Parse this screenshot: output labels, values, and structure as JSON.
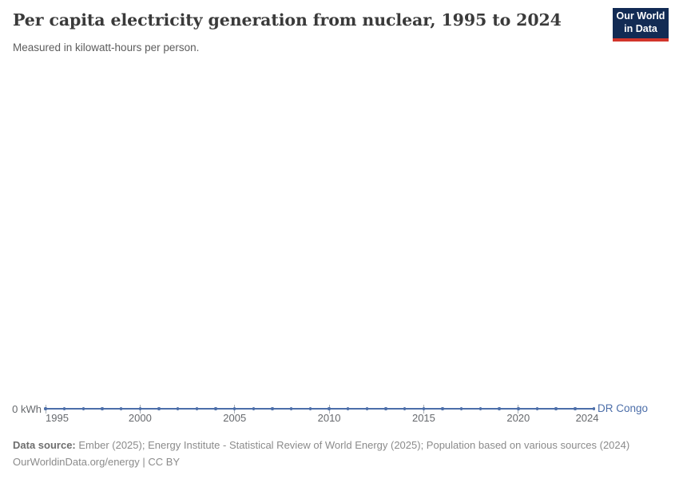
{
  "header": {
    "title": "Per capita electricity generation from nuclear, 1995 to 2024",
    "subtitle": "Measured in kilowatt-hours per person.",
    "logo": {
      "line1": "Our World",
      "line2": "in Data"
    }
  },
  "chart_data": {
    "type": "line",
    "title": "Per capita electricity generation from nuclear, 1995 to 2024",
    "subtitle": "Measured in kilowatt-hours per person.",
    "xlabel": "",
    "ylabel": "kilowatt-hours per person",
    "xlim": [
      1995,
      2024
    ],
    "ylim": [
      0,
      0
    ],
    "grid": false,
    "legend_position": "right-of-line-end",
    "y_ticks": [
      {
        "label": "0 kWh",
        "value": 0
      }
    ],
    "x_axis_ticks": [
      {
        "label": "1995",
        "year": 1995,
        "align": "left",
        "tick": true
      },
      {
        "label": "2000",
        "year": 2000,
        "align": "center",
        "tick": true
      },
      {
        "label": "2005",
        "year": 2005,
        "align": "center",
        "tick": true
      },
      {
        "label": "2010",
        "year": 2010,
        "align": "center",
        "tick": true
      },
      {
        "label": "2015",
        "year": 2015,
        "align": "center",
        "tick": true
      },
      {
        "label": "2020",
        "year": 2020,
        "align": "center",
        "tick": true
      },
      {
        "label": "2024",
        "year": 2024,
        "align": "right",
        "tick": false
      }
    ],
    "series": [
      {
        "name": "DR Congo",
        "color": "#4C6EA9",
        "x": [
          1995,
          1996,
          1997,
          1998,
          1999,
          2000,
          2001,
          2002,
          2003,
          2004,
          2005,
          2006,
          2007,
          2008,
          2009,
          2010,
          2011,
          2012,
          2013,
          2014,
          2015,
          2016,
          2017,
          2018,
          2019,
          2020,
          2021,
          2022,
          2023,
          2024
        ],
        "values": [
          0,
          0,
          0,
          0,
          0,
          0,
          0,
          0,
          0,
          0,
          0,
          0,
          0,
          0,
          0,
          0,
          0,
          0,
          0,
          0,
          0,
          0,
          0,
          0,
          0,
          0,
          0,
          0,
          0,
          0
        ]
      }
    ]
  },
  "footer": {
    "data_source_label": "Data source:",
    "data_source_text": " Ember (2025); Energy Institute - Statistical Review of World Energy (2025); Population based on various sources (2024)",
    "url": "OurWorldinData.org/energy",
    "separator": " | ",
    "license": "CC BY"
  },
  "colors": {
    "line": "#4C6EA9",
    "axis_tick": "#A9AFB5",
    "logo_bg": "#122B54",
    "logo_stripe": "#D2352B"
  }
}
